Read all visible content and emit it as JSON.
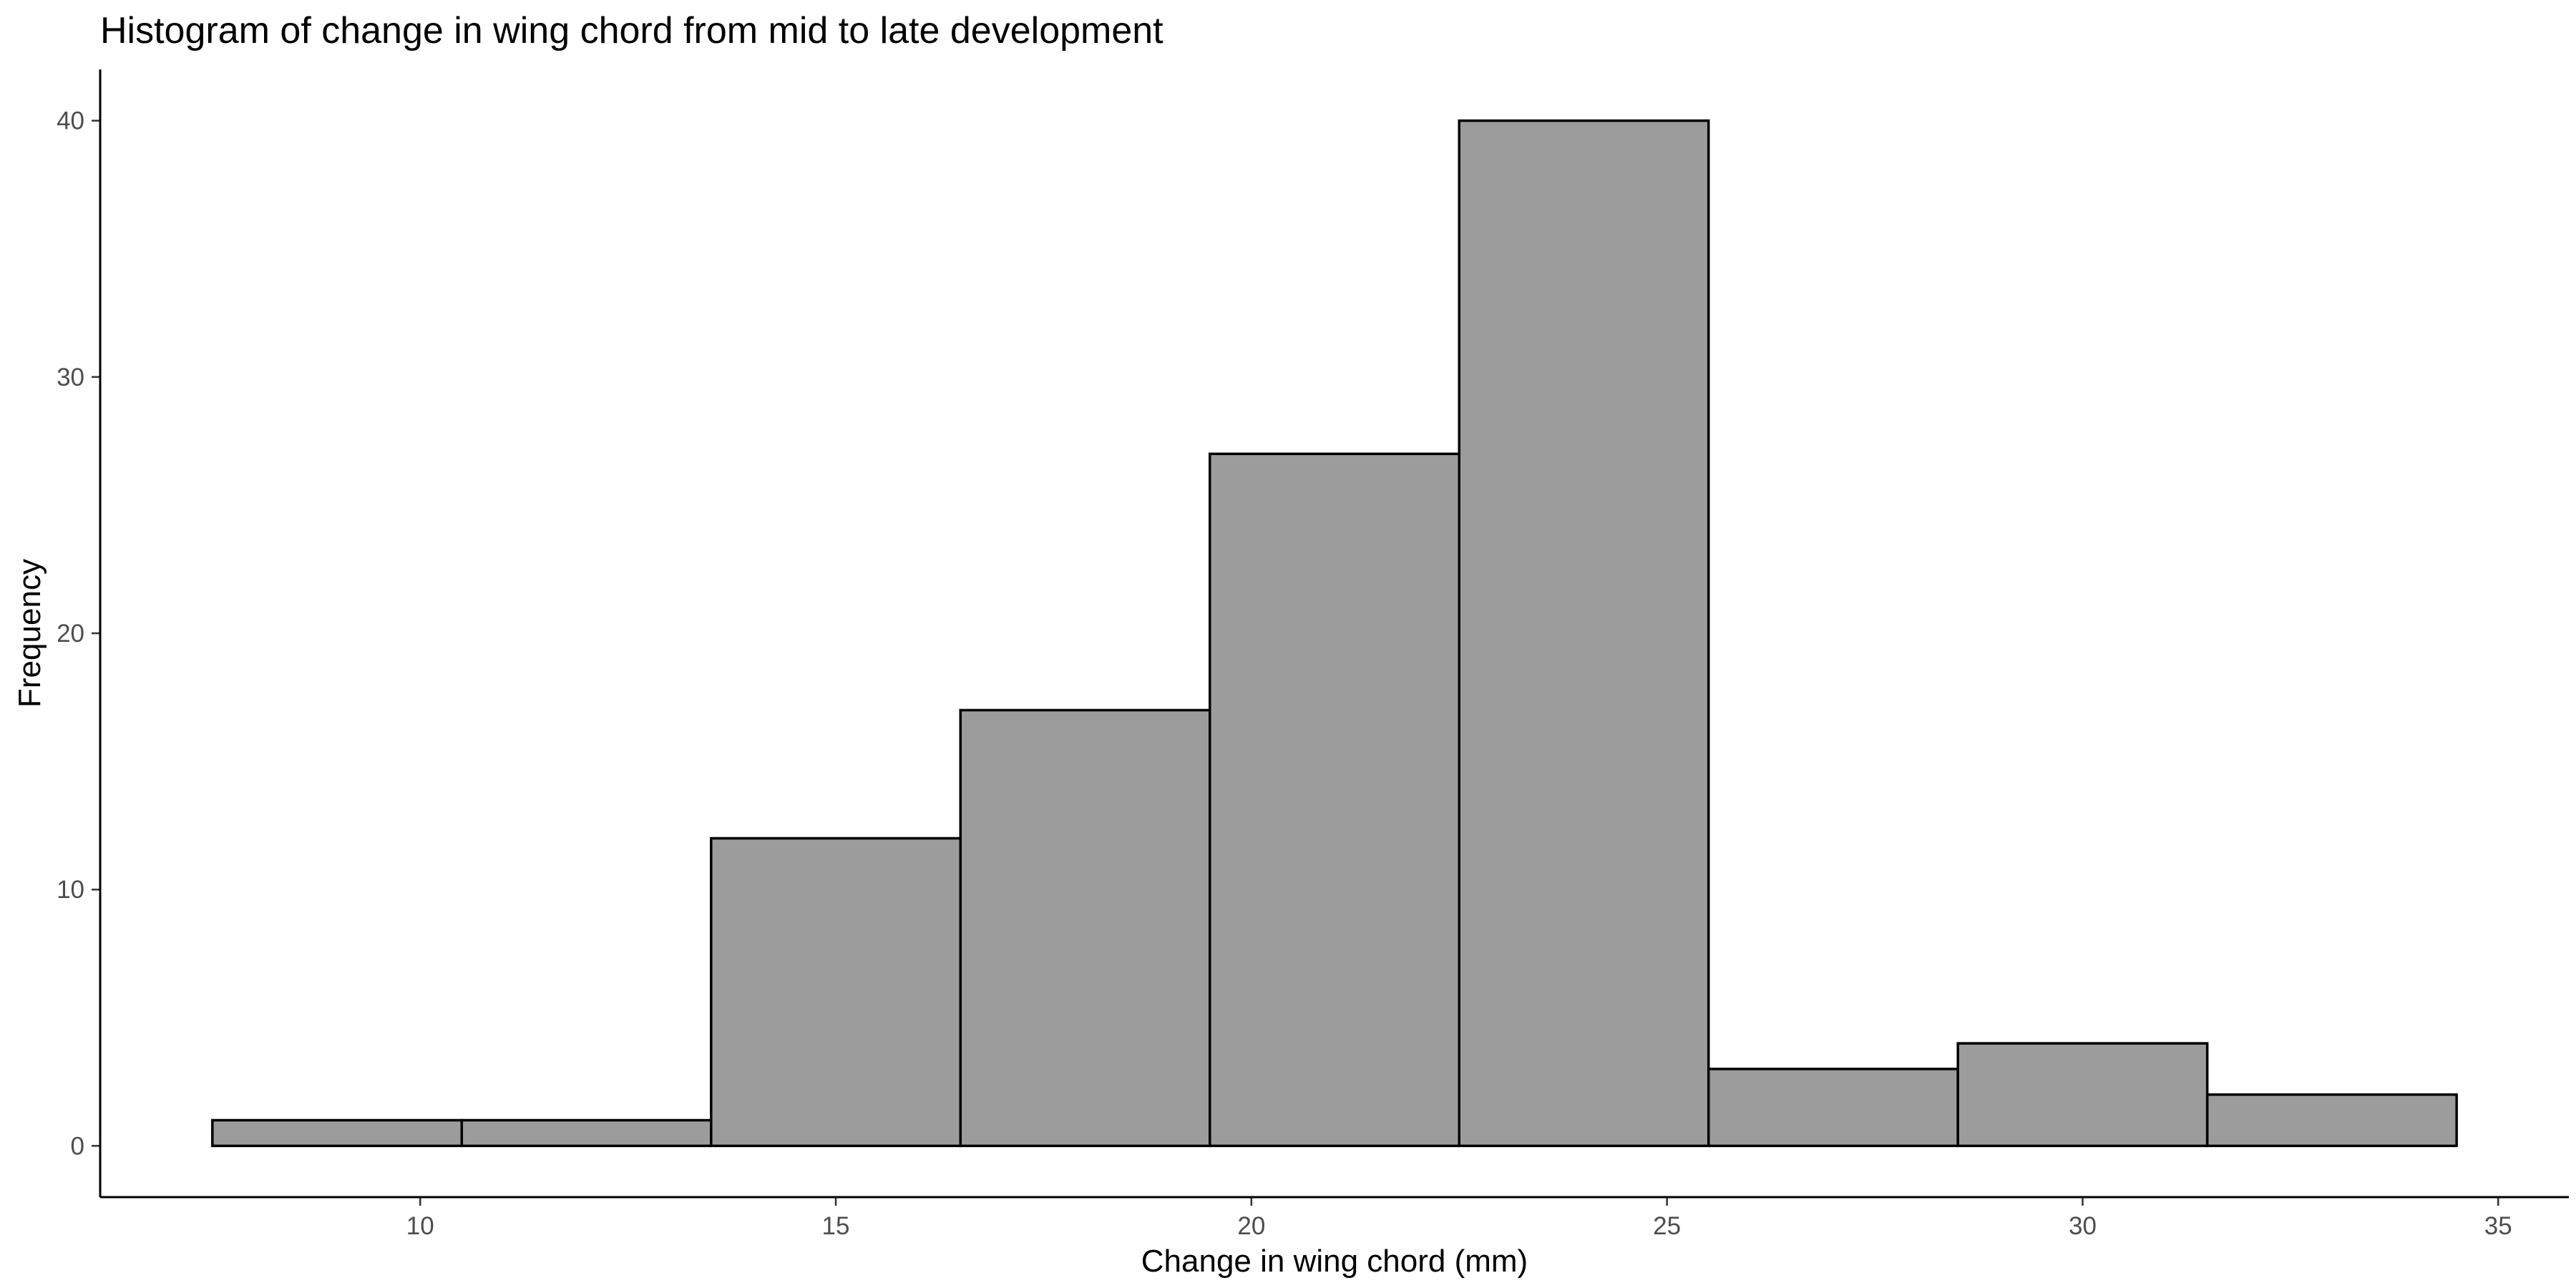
{
  "chart_data": {
    "type": "bar",
    "subtype": "histogram",
    "title": "Histogram of change in wing chord from mid to late development",
    "xlabel": "Change in wing chord (mm)",
    "ylabel": "Frequency",
    "bins": [
      {
        "start": 7.5,
        "end": 10.5,
        "count": 1
      },
      {
        "start": 10.5,
        "end": 13.5,
        "count": 1
      },
      {
        "start": 13.5,
        "end": 16.5,
        "count": 12
      },
      {
        "start": 16.5,
        "end": 19.5,
        "count": 17
      },
      {
        "start": 19.5,
        "end": 22.5,
        "count": 27
      },
      {
        "start": 22.5,
        "end": 25.5,
        "count": 40
      },
      {
        "start": 25.5,
        "end": 28.5,
        "count": 3
      },
      {
        "start": 28.5,
        "end": 31.5,
        "count": 4
      },
      {
        "start": 31.5,
        "end": 34.5,
        "count": 2
      }
    ],
    "xlim": [
      6.15,
      35.85
    ],
    "ylim": [
      -2,
      42
    ],
    "xticks": [
      "10",
      "15",
      "20",
      "25",
      "30",
      "35"
    ],
    "yticks": [
      "0",
      "10",
      "20",
      "30",
      "40"
    ],
    "grid": false,
    "legend": "none",
    "bar_fill": "#9c9c9c",
    "bar_edge": "#000000"
  }
}
